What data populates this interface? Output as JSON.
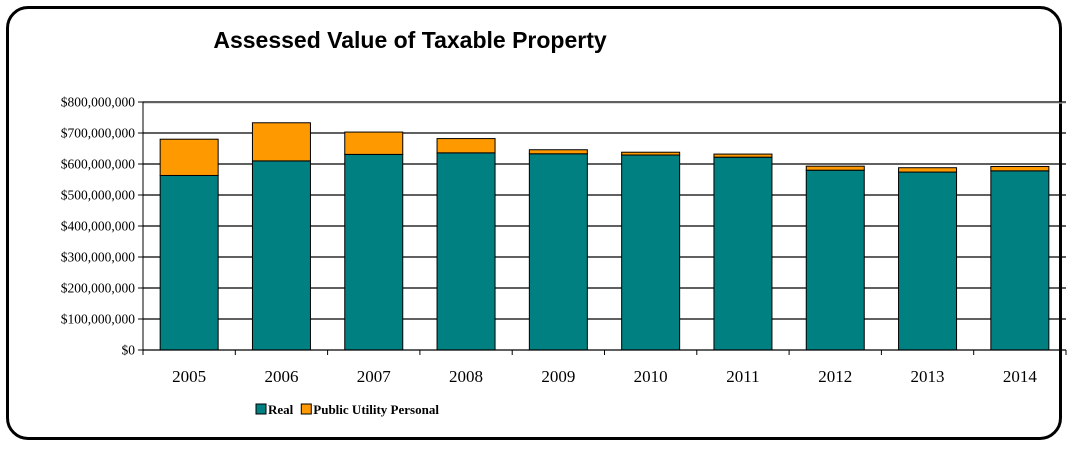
{
  "chart_data": {
    "type": "bar",
    "stacked": true,
    "title": "Assessed Value of Taxable Property",
    "xlabel": "",
    "ylabel": "",
    "categories": [
      "2005",
      "2006",
      "2007",
      "2008",
      "2009",
      "2010",
      "2011",
      "2012",
      "2013",
      "2014"
    ],
    "series": [
      {
        "name": "Real",
        "color": "#008080",
        "values": [
          563000000,
          610000000,
          631000000,
          636000000,
          633000000,
          629000000,
          622000000,
          580000000,
          574000000,
          578000000
        ]
      },
      {
        "name": "Public Utility Personal",
        "color": "#FF9900",
        "values": [
          117000000,
          123000000,
          72000000,
          46000000,
          13000000,
          9000000,
          10000000,
          13000000,
          14000000,
          14000000
        ]
      }
    ],
    "ylim": [
      0,
      800000000
    ],
    "yticks": [
      0,
      100000000,
      200000000,
      300000000,
      400000000,
      500000000,
      600000000,
      700000000,
      800000000
    ],
    "ytick_labels": [
      "$0",
      "$100,000,000",
      "$200,000,000",
      "$300,000,000",
      "$400,000,000",
      "$500,000,000",
      "$600,000,000",
      "$700,000,000",
      "$800,000,000"
    ],
    "grid": true,
    "legend_position": "bottom-left"
  }
}
